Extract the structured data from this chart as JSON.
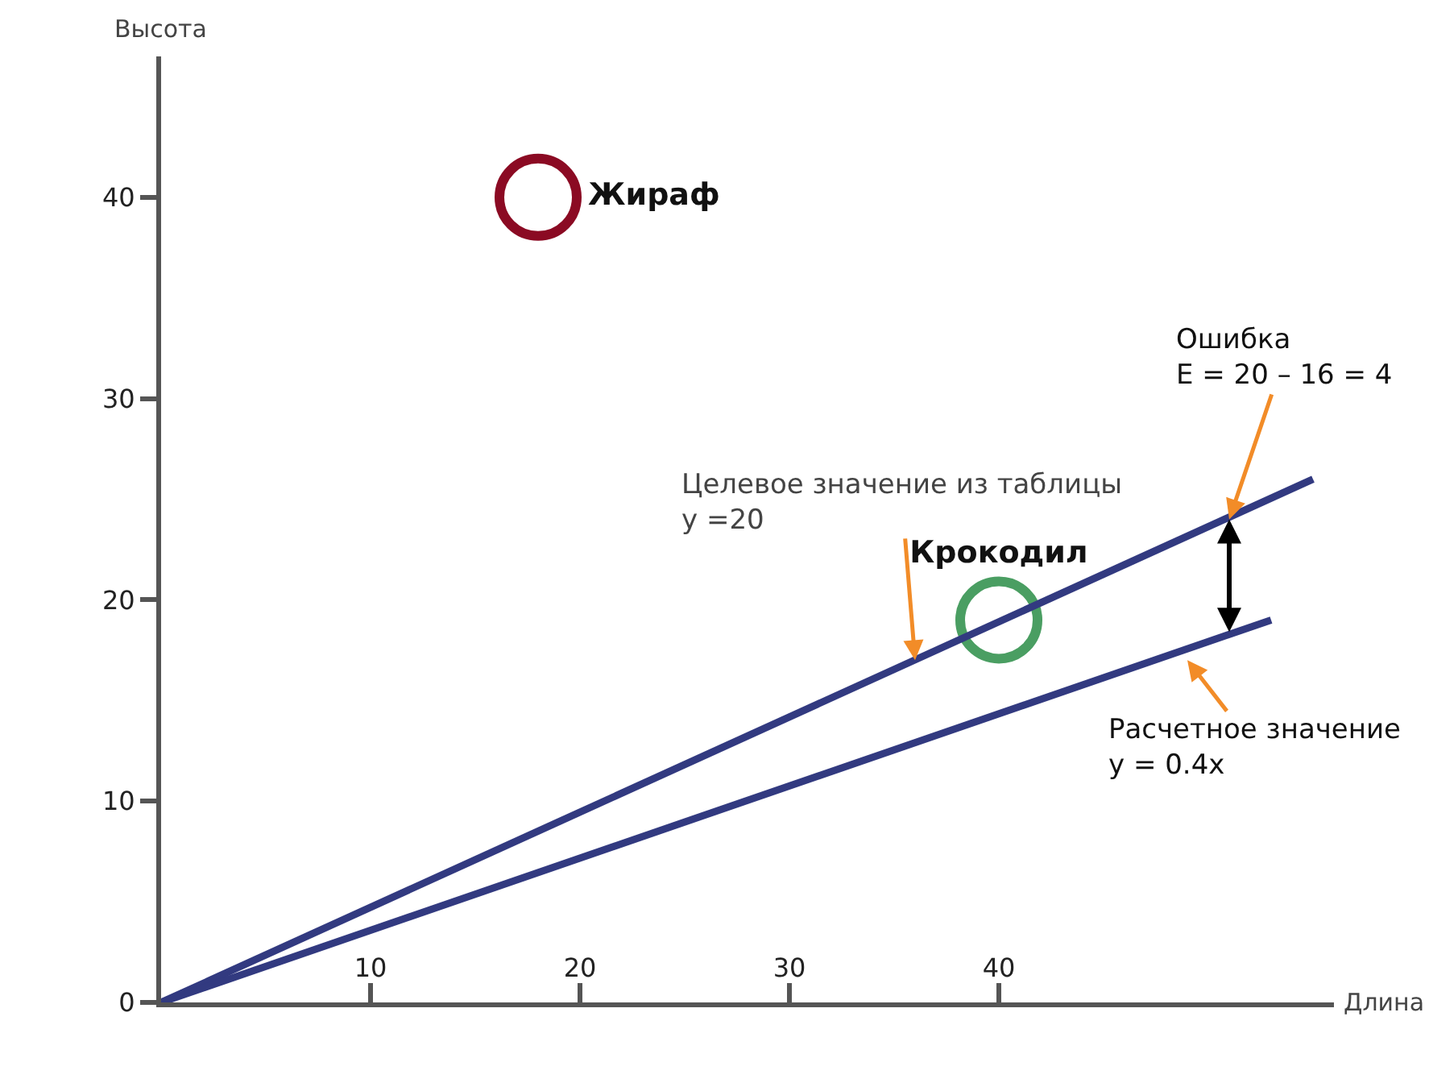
{
  "chart_data": {
    "type": "scatter",
    "xlabel": "Длина",
    "ylabel": "Высота",
    "xlim": [
      0,
      56
    ],
    "xticks": [
      10,
      20,
      30,
      40
    ],
    "ylim": [
      0,
      47
    ],
    "yticks": [
      0,
      10,
      20,
      30,
      40
    ],
    "series": [
      {
        "name": "Жираф",
        "marker": "circle",
        "color": "#8b0a23",
        "x": [
          18
        ],
        "values": [
          40
        ]
      },
      {
        "name": "Крокодил",
        "marker": "circle",
        "color": "#4a9e62",
        "x": [
          40
        ],
        "values": [
          19
        ]
      },
      {
        "type": "line",
        "line_style": "solid",
        "color": "#323a80",
        "x": [
          0,
          55
        ],
        "values": [
          0,
          26
        ]
      },
      {
        "type": "line",
        "line_style": "solid",
        "color": "#323a80",
        "x": [
          0,
          53
        ],
        "values": [
          0,
          19
        ]
      }
    ],
    "annotations": [
      {
        "text": "Целевое значение из таблицы\ny =20",
        "x": 36,
        "y": 17
      },
      {
        "text": "Ошибка\nE = 20 – 16 = 4",
        "x": 51,
        "y": 24
      },
      {
        "text": "Расчетное значение\ny = 0.4x",
        "x": 49,
        "y": 17
      }
    ]
  }
}
